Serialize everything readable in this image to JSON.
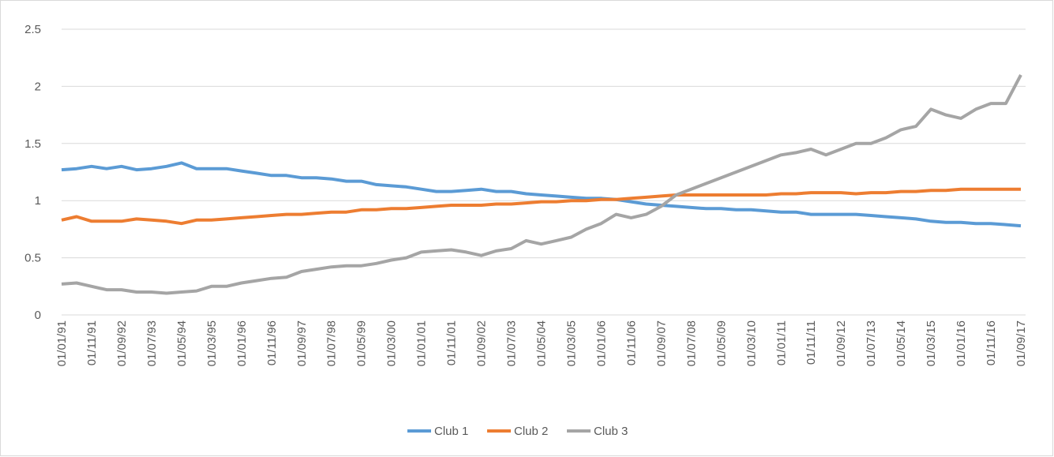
{
  "chart_data": {
    "type": "line",
    "categories": [
      "01/01/91",
      null,
      "01/11/91",
      null,
      "01/09/92",
      null,
      "01/07/93",
      null,
      "01/05/94",
      null,
      "01/03/95",
      null,
      "01/01/96",
      null,
      "01/11/96",
      null,
      "01/09/97",
      null,
      "01/07/98",
      null,
      "01/05/99",
      null,
      "01/03/00",
      null,
      "01/01/01",
      null,
      "01/11/01",
      null,
      "01/09/02",
      null,
      "01/07/03",
      null,
      "01/05/04",
      null,
      "01/03/05",
      null,
      "01/01/06",
      null,
      "01/11/06",
      null,
      "01/09/07",
      null,
      "01/07/08",
      null,
      "01/05/09",
      null,
      "01/03/10",
      null,
      "01/01/11",
      null,
      "01/11/11",
      null,
      "01/09/12",
      null,
      "01/07/13",
      null,
      "01/05/14",
      null,
      "01/03/15",
      null,
      "01/01/16",
      null,
      "01/11/16",
      null,
      "01/09/17"
    ],
    "series": [
      {
        "name": "Club 1",
        "color": "#5b9bd5",
        "values": [
          1.27,
          1.28,
          1.3,
          1.28,
          1.3,
          1.27,
          1.28,
          1.3,
          1.33,
          1.28,
          1.28,
          1.28,
          1.26,
          1.24,
          1.22,
          1.22,
          1.2,
          1.2,
          1.19,
          1.17,
          1.17,
          1.14,
          1.13,
          1.12,
          1.1,
          1.08,
          1.08,
          1.09,
          1.1,
          1.08,
          1.08,
          1.06,
          1.05,
          1.04,
          1.03,
          1.02,
          1.02,
          1.01,
          0.99,
          0.97,
          0.96,
          0.95,
          0.94,
          0.93,
          0.93,
          0.92,
          0.92,
          0.91,
          0.9,
          0.9,
          0.88,
          0.88,
          0.88,
          0.88,
          0.87,
          0.86,
          0.85,
          0.84,
          0.82,
          0.81,
          0.81,
          0.8,
          0.8,
          0.79,
          0.78
        ]
      },
      {
        "name": "Club 2",
        "color": "#ed7d31",
        "values": [
          0.83,
          0.86,
          0.82,
          0.82,
          0.82,
          0.84,
          0.83,
          0.82,
          0.8,
          0.83,
          0.83,
          0.84,
          0.85,
          0.86,
          0.87,
          0.88,
          0.88,
          0.89,
          0.9,
          0.9,
          0.92,
          0.92,
          0.93,
          0.93,
          0.94,
          0.95,
          0.96,
          0.96,
          0.96,
          0.97,
          0.97,
          0.98,
          0.99,
          0.99,
          1.0,
          1.0,
          1.01,
          1.01,
          1.02,
          1.03,
          1.04,
          1.05,
          1.05,
          1.05,
          1.05,
          1.05,
          1.05,
          1.05,
          1.06,
          1.06,
          1.07,
          1.07,
          1.07,
          1.06,
          1.07,
          1.07,
          1.08,
          1.08,
          1.09,
          1.09,
          1.1,
          1.1,
          1.1,
          1.1,
          1.1
        ]
      },
      {
        "name": "Club 3",
        "color": "#a5a5a5",
        "values": [
          0.27,
          0.28,
          0.25,
          0.22,
          0.22,
          0.2,
          0.2,
          0.19,
          0.2,
          0.21,
          0.25,
          0.25,
          0.28,
          0.3,
          0.32,
          0.33,
          0.38,
          0.4,
          0.42,
          0.43,
          0.43,
          0.45,
          0.48,
          0.5,
          0.55,
          0.56,
          0.57,
          0.55,
          0.52,
          0.56,
          0.58,
          0.65,
          0.62,
          0.65,
          0.68,
          0.75,
          0.8,
          0.88,
          0.85,
          0.88,
          0.95,
          1.05,
          1.1,
          1.15,
          1.2,
          1.25,
          1.3,
          1.35,
          1.4,
          1.42,
          1.45,
          1.4,
          1.45,
          1.5,
          1.5,
          1.55,
          1.62,
          1.65,
          1.8,
          1.75,
          1.72,
          1.8,
          1.85,
          1.85,
          2.1
        ]
      }
    ],
    "ylim": [
      0,
      2.5
    ],
    "yticks": [
      0,
      0.5,
      1,
      1.5,
      2,
      2.5
    ],
    "grid": true,
    "legend": "bottom"
  }
}
